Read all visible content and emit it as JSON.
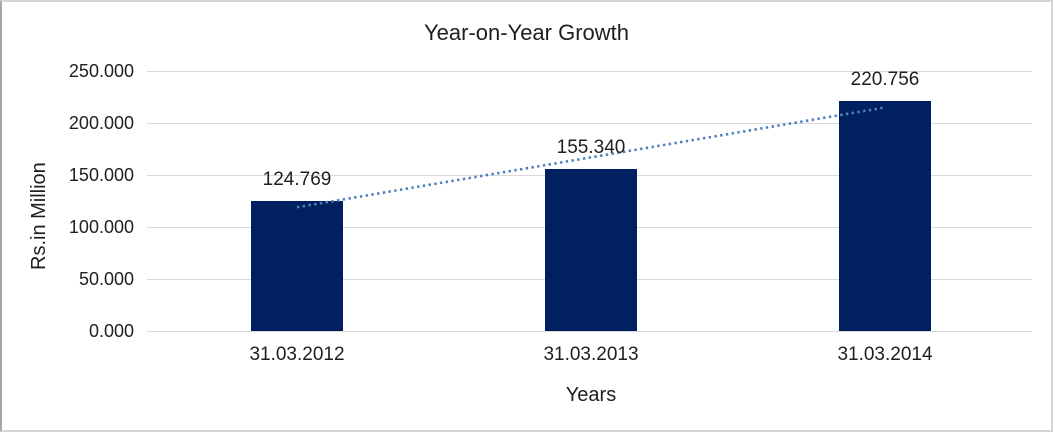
{
  "chart_data": {
    "type": "bar",
    "title": "Year-on-Year Growth",
    "xlabel": "Years",
    "ylabel": "Rs.in Million",
    "categories": [
      "31.03.2012",
      "31.03.2013",
      "31.03.2014"
    ],
    "values": [
      124.769,
      155.34,
      220.756
    ],
    "value_labels": [
      "124.769",
      "155.340",
      "220.756"
    ],
    "ytick_labels": [
      "0.000",
      "50.000",
      "100.000",
      "150.000",
      "200.000",
      "250.000"
    ],
    "ylim": [
      0,
      250
    ],
    "grid": true,
    "legend": false,
    "trendline": {
      "type": "linear",
      "style": "dotted"
    },
    "colors": {
      "bar": "#002060",
      "trendline": "#4f81bd",
      "gridline": "#d9d9d9",
      "text": "#1f1f1f",
      "background": "#ffffff"
    }
  }
}
